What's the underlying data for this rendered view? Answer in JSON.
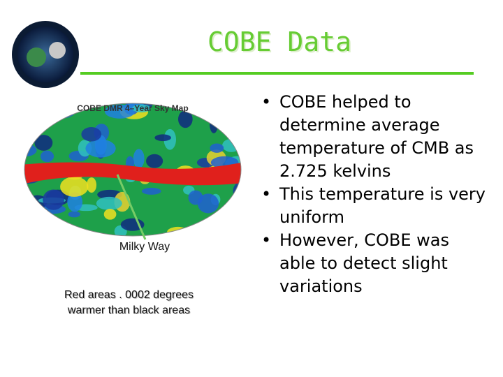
{
  "title": "COBE Data",
  "figure": {
    "caption": "COBE DMR 4–Year Sky Map",
    "pointer_label": "Milky Way",
    "note": "Red areas . 0002 degrees warmer than black areas"
  },
  "bullets": [
    "COBE helped to determine average temperature of CMB as 2.725 kelvins",
    "This temperature is very uniform",
    "However, COBE was able to detect slight variations"
  ]
}
